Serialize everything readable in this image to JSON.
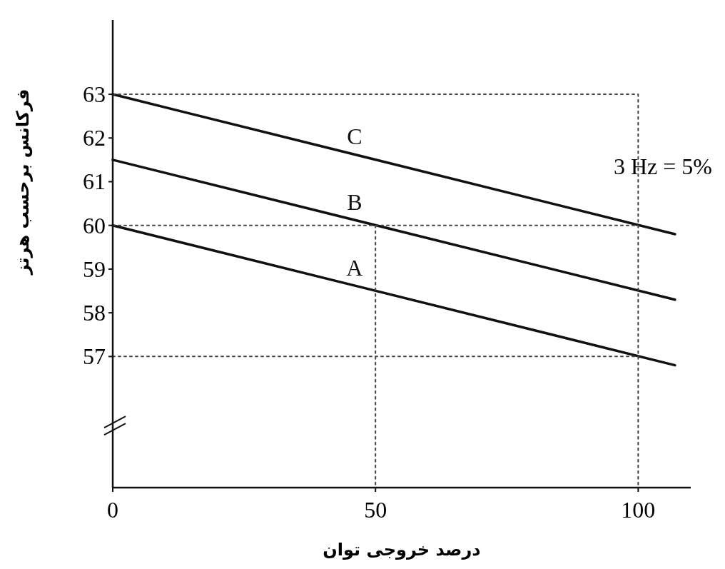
{
  "chart_data": {
    "type": "line",
    "xlabel": "درصد خروجی توان",
    "ylabel": "فرکانس برحسب هرتز",
    "xlim": [
      0,
      110
    ],
    "ylim": [
      54,
      64.7
    ],
    "xticks": [
      0,
      50,
      100
    ],
    "yticks": [
      57,
      58,
      59,
      60,
      61,
      62,
      63
    ],
    "marker": "none",
    "line_style": "solid",
    "annotations": [
      "3 Hz = 5%"
    ],
    "series": [
      {
        "name": "C",
        "color": "#111111",
        "x": [
          0,
          107
        ],
        "values": [
          63,
          59.8
        ]
      },
      {
        "name": "B",
        "color": "#111111",
        "x": [
          0,
          107
        ],
        "values": [
          61.5,
          58.3
        ]
      },
      {
        "name": "A",
        "color": "#111111",
        "x": [
          0,
          107
        ],
        "values": [
          60,
          56.8
        ]
      },
      {
        "color": "#444444",
        "line_style": "dotted",
        "x": [
          0,
          100,
          100
        ],
        "values": [
          63,
          63,
          54
        ]
      },
      {
        "color": "#444444",
        "line_style": "dotted",
        "x": [
          0,
          100
        ],
        "values": [
          60,
          60
        ]
      },
      {
        "color": "#444444",
        "line_style": "dotted",
        "x": [
          0,
          100
        ],
        "values": [
          57,
          57
        ]
      },
      {
        "color": "#444444",
        "line_style": "dotted",
        "x": [
          50,
          50
        ],
        "values": [
          60,
          54
        ]
      }
    ]
  }
}
